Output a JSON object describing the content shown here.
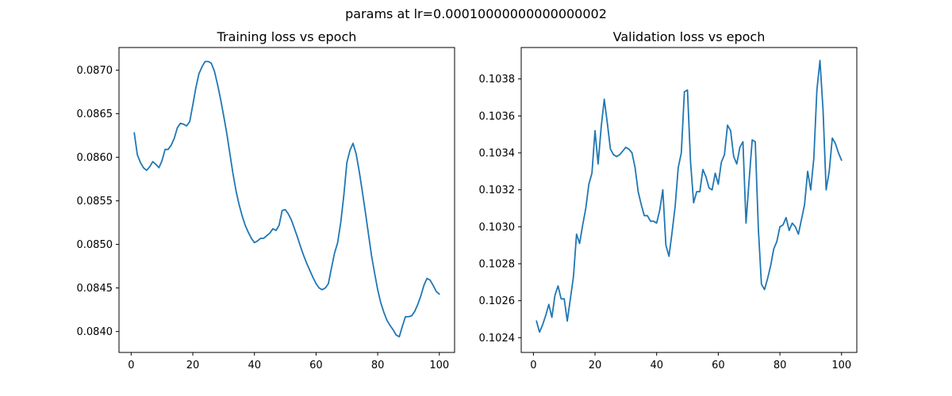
{
  "figure": {
    "suptitle": "params at lr=0.00010000000000000002"
  },
  "colors": {
    "series": "#1f77b4"
  },
  "chart_data": [
    {
      "type": "line",
      "title": "Training loss vs epoch",
      "xlabel": "",
      "ylabel": "",
      "xlim": [
        -3.95,
        104.95
      ],
      "ylim": [
        0.08376,
        0.08726
      ],
      "xticks": [
        0,
        20,
        40,
        60,
        80,
        100
      ],
      "xtick_labels": [
        "0",
        "20",
        "40",
        "60",
        "80",
        "100"
      ],
      "yticks": [
        0.084,
        0.0845,
        0.085,
        0.0855,
        0.086,
        0.0865,
        0.087
      ],
      "ytick_labels": [
        "0.0840",
        "0.0845",
        "0.0850",
        "0.0855",
        "0.0860",
        "0.0865",
        "0.0870"
      ],
      "grid": false,
      "series": [
        {
          "x": [
            1,
            2,
            3,
            4,
            5,
            6,
            7,
            8,
            9,
            10,
            11,
            12,
            13,
            14,
            15,
            16,
            17,
            18,
            19,
            20,
            21,
            22,
            23,
            24,
            25,
            26,
            27,
            28,
            29,
            30,
            31,
            32,
            33,
            34,
            35,
            36,
            37,
            38,
            39,
            40,
            41,
            42,
            43,
            44,
            45,
            46,
            47,
            48,
            49,
            50,
            51,
            52,
            53,
            54,
            55,
            56,
            57,
            58,
            59,
            60,
            61,
            62,
            63,
            64,
            65,
            66,
            67,
            68,
            69,
            70,
            71,
            72,
            73,
            74,
            75,
            76,
            77,
            78,
            79,
            80,
            81,
            82,
            83,
            84,
            85,
            86,
            87,
            88,
            89,
            90,
            91,
            92,
            93,
            94,
            95,
            96,
            97,
            98,
            99,
            100
          ],
          "values": [
            0.08628,
            0.08603,
            0.08594,
            0.08588,
            0.08585,
            0.08589,
            0.08595,
            0.08592,
            0.08588,
            0.08596,
            0.08609,
            0.08609,
            0.08614,
            0.08622,
            0.08634,
            0.08639,
            0.08638,
            0.08636,
            0.08641,
            0.0866,
            0.0868,
            0.08696,
            0.08704,
            0.0871,
            0.0871,
            0.08708,
            0.08699,
            0.08684,
            0.08667,
            0.08648,
            0.08628,
            0.08605,
            0.08582,
            0.08562,
            0.08546,
            0.08533,
            0.08522,
            0.08514,
            0.08507,
            0.08502,
            0.08504,
            0.08507,
            0.08507,
            0.0851,
            0.08513,
            0.08518,
            0.08516,
            0.08522,
            0.08539,
            0.0854,
            0.08535,
            0.08528,
            0.08518,
            0.08508,
            0.08497,
            0.08487,
            0.08478,
            0.0847,
            0.08462,
            0.08455,
            0.0845,
            0.08448,
            0.0845,
            0.08455,
            0.08473,
            0.0849,
            0.08502,
            0.08525,
            0.08556,
            0.08594,
            0.08608,
            0.08616,
            0.08604,
            0.08584,
            0.08561,
            0.08537,
            0.08512,
            0.08487,
            0.08467,
            0.08448,
            0.08433,
            0.08422,
            0.08413,
            0.08407,
            0.08402,
            0.08396,
            0.08394,
            0.08406,
            0.08417,
            0.08417,
            0.08418,
            0.08423,
            0.08431,
            0.08441,
            0.08453,
            0.08461,
            0.08459,
            0.08453,
            0.08446,
            0.08443
          ]
        }
      ]
    },
    {
      "type": "line",
      "title": "Validation loss vs epoch",
      "xlabel": "",
      "ylabel": "",
      "xlim": [
        -3.95,
        104.95
      ],
      "ylim": [
        0.10232,
        0.10397
      ],
      "xticks": [
        0,
        20,
        40,
        60,
        80,
        100
      ],
      "xtick_labels": [
        "0",
        "20",
        "40",
        "60",
        "80",
        "100"
      ],
      "yticks": [
        0.1024,
        0.1026,
        0.1028,
        0.103,
        0.1032,
        0.1034,
        0.1036,
        0.1038
      ],
      "ytick_labels": [
        "0.1024",
        "0.1026",
        "0.1028",
        "0.1030",
        "0.1032",
        "0.1034",
        "0.1036",
        "0.1038"
      ],
      "grid": false,
      "series": [
        {
          "x": [
            1,
            2,
            3,
            4,
            5,
            6,
            7,
            8,
            9,
            10,
            11,
            12,
            13,
            14,
            15,
            16,
            17,
            18,
            19,
            20,
            21,
            22,
            23,
            24,
            25,
            26,
            27,
            28,
            29,
            30,
            31,
            32,
            33,
            34,
            35,
            36,
            37,
            38,
            39,
            40,
            41,
            42,
            43,
            44,
            45,
            46,
            47,
            48,
            49,
            50,
            51,
            52,
            53,
            54,
            55,
            56,
            57,
            58,
            59,
            60,
            61,
            62,
            63,
            64,
            65,
            66,
            67,
            68,
            69,
            70,
            71,
            72,
            73,
            74,
            75,
            76,
            77,
            78,
            79,
            80,
            81,
            82,
            83,
            84,
            85,
            86,
            87,
            88,
            89,
            90,
            91,
            92,
            93,
            94,
            95,
            96,
            97,
            98,
            99,
            100
          ],
          "values": [
            0.10249,
            0.10243,
            0.10247,
            0.10252,
            0.10258,
            0.10251,
            0.10263,
            0.10268,
            0.10261,
            0.10261,
            0.10249,
            0.10261,
            0.10273,
            0.10296,
            0.10291,
            0.10301,
            0.1031,
            0.10323,
            0.10329,
            0.10352,
            0.10334,
            0.10354,
            0.10369,
            0.10356,
            0.10342,
            0.10339,
            0.10338,
            0.10339,
            0.10341,
            0.10343,
            0.10342,
            0.1034,
            0.10332,
            0.10319,
            0.10312,
            0.10306,
            0.10306,
            0.10303,
            0.10303,
            0.10302,
            0.10309,
            0.1032,
            0.1029,
            0.10284,
            0.10297,
            0.10311,
            0.10332,
            0.1034,
            0.10373,
            0.10374,
            0.10335,
            0.10313,
            0.10319,
            0.10319,
            0.10331,
            0.10327,
            0.10321,
            0.1032,
            0.10329,
            0.10323,
            0.10335,
            0.10339,
            0.10355,
            0.10352,
            0.10338,
            0.10334,
            0.10343,
            0.10346,
            0.10302,
            0.10325,
            0.10347,
            0.10346,
            0.10299,
            0.10269,
            0.10266,
            0.10272,
            0.10279,
            0.10288,
            0.10292,
            0.103,
            0.10301,
            0.10305,
            0.10298,
            0.10302,
            0.103,
            0.10296,
            0.10304,
            0.10312,
            0.1033,
            0.1032,
            0.10337,
            0.10374,
            0.1039,
            0.10363,
            0.1032,
            0.1033,
            0.10348,
            0.10345,
            0.1034,
            0.10336
          ]
        }
      ]
    }
  ]
}
